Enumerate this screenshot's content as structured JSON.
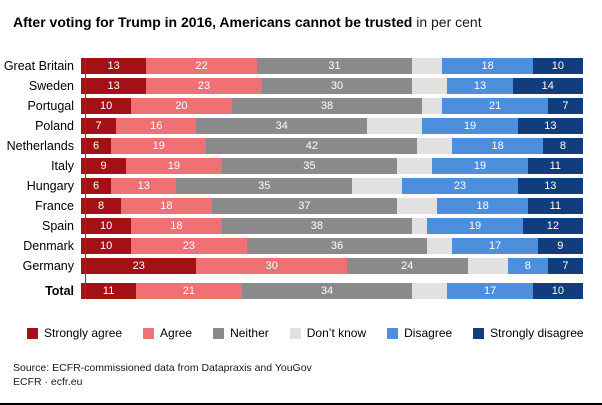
{
  "title": {
    "main": "After voting for Trump in 2016, Americans cannot be trusted",
    "suffix": " in per cent"
  },
  "chart_data": {
    "type": "bar",
    "variant": "horizontal-stacked",
    "unit": "per cent",
    "xlim": [
      0,
      100
    ],
    "grid": false,
    "legend_position": "bottom",
    "categories": [
      "Great Britain",
      "Sweden",
      "Portugal",
      "Poland",
      "Netherlands",
      "Italy",
      "Hungary",
      "France",
      "Spain",
      "Denmark",
      "Germany",
      "Total"
    ],
    "series": [
      {
        "name": "Strongly agree",
        "color": "#a31116",
        "show_labels": true,
        "values": [
          13,
          13,
          10,
          7,
          6,
          9,
          6,
          8,
          10,
          10,
          23,
          11
        ]
      },
      {
        "name": "Agree",
        "color": "#ef7173",
        "show_labels": true,
        "values": [
          22,
          23,
          20,
          16,
          19,
          19,
          13,
          18,
          18,
          23,
          30,
          21
        ]
      },
      {
        "name": "Neither",
        "color": "#8a8a8a",
        "show_labels": true,
        "values": [
          31,
          30,
          38,
          34,
          42,
          35,
          35,
          37,
          38,
          36,
          24,
          34
        ]
      },
      {
        "name": "Don’t know",
        "color": "#e1e1e1",
        "show_labels": false,
        "values": [
          6,
          7,
          4,
          11,
          7,
          7,
          10,
          8,
          3,
          5,
          8,
          7
        ]
      },
      {
        "name": "Disagree",
        "color": "#4d8edd",
        "show_labels": true,
        "values": [
          18,
          13,
          21,
          19,
          18,
          19,
          23,
          18,
          19,
          17,
          8,
          17
        ]
      },
      {
        "name": "Strongly disagree",
        "color": "#123d7d",
        "show_labels": true,
        "values": [
          10,
          14,
          7,
          13,
          8,
          11,
          13,
          11,
          12,
          9,
          7,
          10
        ]
      }
    ]
  },
  "legend": {
    "items": [
      {
        "label": "Strongly agree",
        "color": "#a31116"
      },
      {
        "label": "Agree",
        "color": "#ef7173"
      },
      {
        "label": "Neither",
        "color": "#8a8a8a"
      },
      {
        "label": "Don’t know",
        "color": "#e1e1e1"
      },
      {
        "label": "Disagree",
        "color": "#4d8edd"
      },
      {
        "label": "Strongly disagree",
        "color": "#123d7d"
      }
    ]
  },
  "footer": {
    "source": "Source: ECFR-commissioned data from Datapraxis and YouGov",
    "credit": "ECFR · ecfr.eu"
  }
}
